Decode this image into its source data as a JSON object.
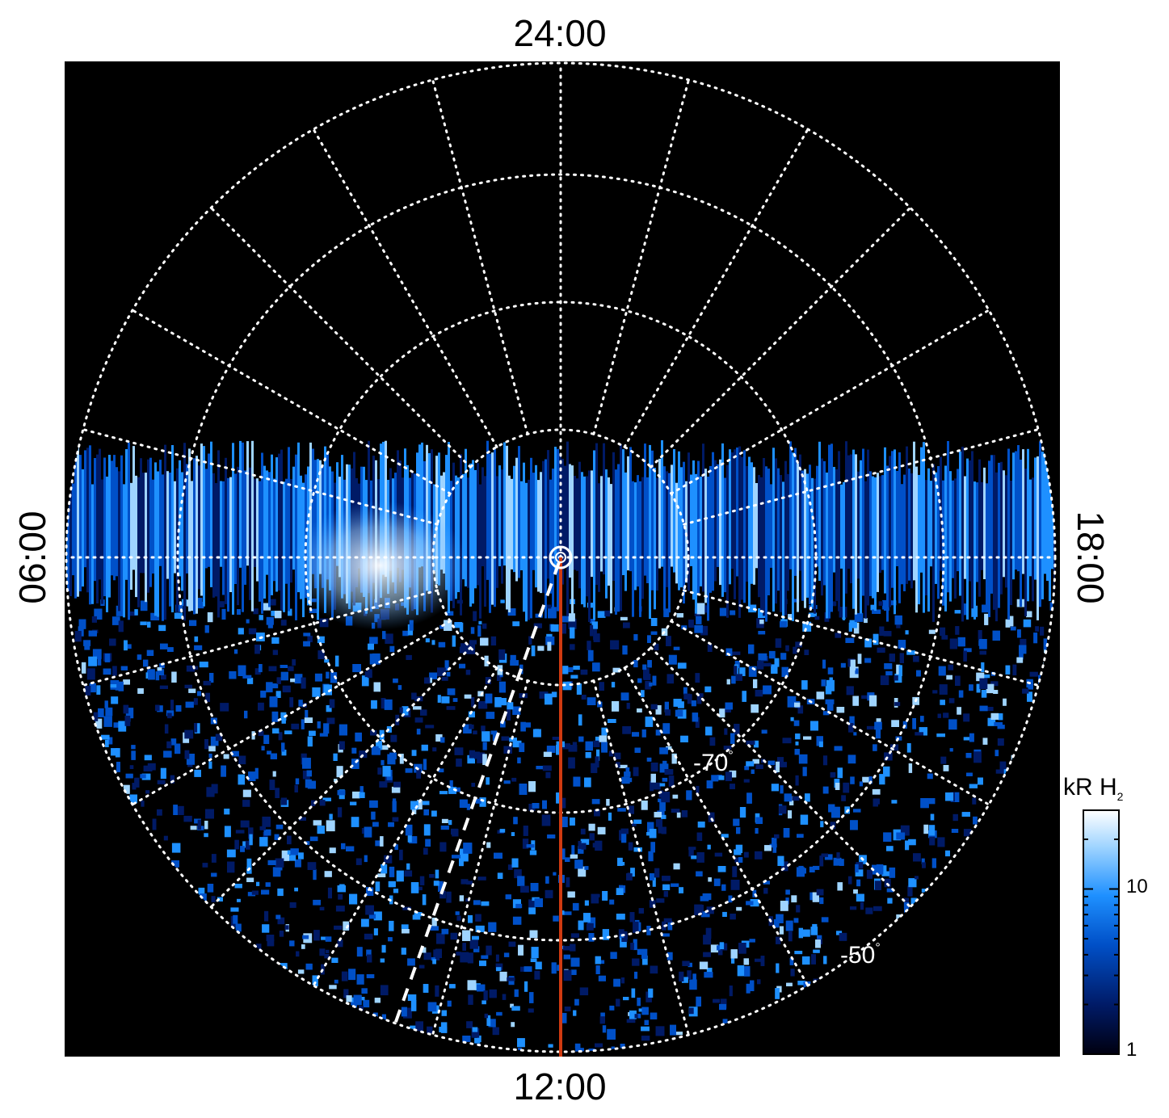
{
  "figure": {
    "local_time_labels": {
      "top": "24:00",
      "bottom": "12:00",
      "left": "06:00",
      "right": "18:00"
    },
    "latitude_labels": [
      {
        "text": "-70",
        "unit": "°"
      },
      {
        "text": "-50",
        "unit": "°"
      }
    ],
    "colorbar": {
      "title_main": "kR H",
      "title_sub": "2",
      "scale": "log",
      "range": [
        1,
        30
      ],
      "tick_labels": [
        "10",
        "1"
      ],
      "colors": [
        "#000010",
        "#001a66",
        "#0050c8",
        "#1e90ff",
        "#9fd4ff",
        "#ffffff"
      ]
    },
    "overlay_colors": {
      "background": "#000000",
      "grid": "#ffffff",
      "meridian_line": "#d03a10",
      "dashed_line": "#ffffff"
    }
  }
}
